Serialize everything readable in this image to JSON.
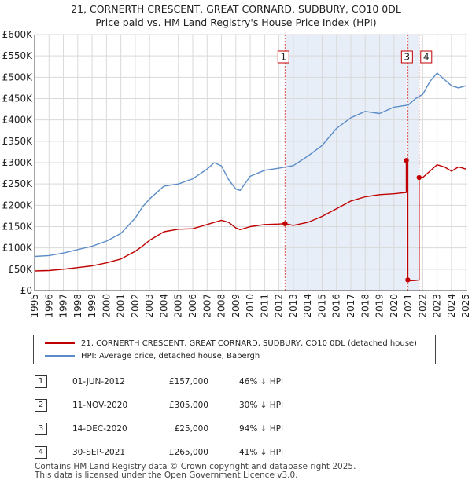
{
  "title_line1": "21, CORNERTH CRESCENT, GREAT CORNARD, SUDBURY, CO10 0DL",
  "title_line2": "Price paid vs. HM Land Registry's House Price Index (HPI)",
  "colors": {
    "property": "#c00000",
    "hpi": "#5b8cc8",
    "shade": "#e8eef8",
    "grid": "#d9d9d9"
  },
  "chart_data": {
    "type": "line",
    "title": "21, CORNERTH CRESCENT, GREAT CORNARD, SUDBURY, CO10 0DL — Price paid vs. HM Land Registry's House Price Index (HPI)",
    "xlabel": "",
    "ylabel": "",
    "xlim": [
      1995.0,
      2025.1
    ],
    "ylim": [
      0,
      600000
    ],
    "grid": true,
    "x_ticks": [
      "1995",
      "1996",
      "1997",
      "1998",
      "1999",
      "2000",
      "2001",
      "2002",
      "2003",
      "2004",
      "2005",
      "2006",
      "2007",
      "2008",
      "2009",
      "2010",
      "2011",
      "2012",
      "2013",
      "2014",
      "2015",
      "2016",
      "2017",
      "2018",
      "2019",
      "2020",
      "2021",
      "2022",
      "2023",
      "2024",
      "2025"
    ],
    "y_ticks": [
      "£0",
      "£50K",
      "£100K",
      "£150K",
      "£200K",
      "£250K",
      "£300K",
      "£350K",
      "£400K",
      "£450K",
      "£500K",
      "£550K",
      "£600K"
    ],
    "series": [
      {
        "name": "21, CORNERTH CRESCENT, GREAT CORNARD, SUDBURY, CO10 0DL (detached house)",
        "color": "#c00000",
        "x": [
          1995.0,
          1996.0,
          1997.0,
          1998.0,
          1999.0,
          2000.0,
          2001.0,
          2002.0,
          2002.5,
          2003.0,
          2004.0,
          2005.0,
          2006.0,
          2007.0,
          2007.5,
          2008.0,
          2008.5,
          2009.0,
          2009.3,
          2010.0,
          2011.0,
          2012.0,
          2012.42,
          2013.0,
          2014.0,
          2015.0,
          2016.0,
          2017.0,
          2018.0,
          2019.0,
          2020.0,
          2020.86,
          2020.86,
          2020.96,
          2020.96,
          2021.0,
          2021.5,
          2021.75,
          2021.75,
          2022.0,
          2022.5,
          2023.0,
          2023.5,
          2024.0,
          2024.5,
          2025.0
        ],
        "values": [
          46000,
          47000,
          50000,
          54000,
          58000,
          65000,
          74000,
          92000,
          104000,
          118000,
          138000,
          144000,
          145000,
          155000,
          160000,
          165000,
          160000,
          147000,
          143000,
          150000,
          155000,
          156000,
          157000,
          153000,
          160000,
          174000,
          192000,
          210000,
          220000,
          225000,
          227000,
          230000,
          305000,
          305000,
          25000,
          23000,
          24000,
          25000,
          265000,
          265000,
          280000,
          295000,
          290000,
          280000,
          290000,
          285000
        ]
      },
      {
        "name": "HPI: Average price, detached house, Babergh",
        "color": "#5b8cc8",
        "x": [
          1995.0,
          1996.0,
          1997.0,
          1998.0,
          1999.0,
          2000.0,
          2001.0,
          2002.0,
          2002.5,
          2003.0,
          2004.0,
          2005.0,
          2006.0,
          2007.0,
          2007.5,
          2008.0,
          2008.5,
          2009.0,
          2009.3,
          2010.0,
          2011.0,
          2012.0,
          2013.0,
          2014.0,
          2015.0,
          2016.0,
          2017.0,
          2018.0,
          2019.0,
          2020.0,
          2021.0,
          2021.5,
          2022.0,
          2022.5,
          2023.0,
          2023.5,
          2024.0,
          2024.5,
          2025.0
        ],
        "values": [
          80000,
          82000,
          88000,
          96000,
          104000,
          116000,
          134000,
          170000,
          196000,
          215000,
          245000,
          250000,
          262000,
          285000,
          300000,
          292000,
          260000,
          238000,
          235000,
          268000,
          282000,
          287000,
          293000,
          315000,
          340000,
          380000,
          405000,
          420000,
          415000,
          430000,
          435000,
          450000,
          460000,
          490000,
          510000,
          495000,
          480000,
          475000,
          480000
        ]
      }
    ],
    "annotations": [
      {
        "label": "1",
        "x": 2012.42
      },
      {
        "label": "3",
        "x": 2020.96
      },
      {
        "label": "4",
        "x": 2021.75
      }
    ],
    "shaded_regions": [
      {
        "from": 2012.42,
        "to": 2020.86
      },
      {
        "from": 2020.96,
        "to": 2021.75
      }
    ]
  },
  "legend": {
    "property_label": "21, CORNERTH CRESCENT, GREAT CORNARD, SUDBURY, CO10 0DL (detached house)",
    "hpi_label": "HPI: Average price, detached house, Babergh"
  },
  "sales": [
    {
      "num": "1",
      "date": "01-JUN-2012",
      "price": "£157,000",
      "hpi": "46% ↓ HPI"
    },
    {
      "num": "2",
      "date": "11-NOV-2020",
      "price": "£305,000",
      "hpi": "30% ↓ HPI"
    },
    {
      "num": "3",
      "date": "14-DEC-2020",
      "price": "£25,000",
      "hpi": "94% ↓ HPI"
    },
    {
      "num": "4",
      "date": "30-SEP-2021",
      "price": "£265,000",
      "hpi": "41% ↓ HPI"
    }
  ],
  "footer_line1": "Contains HM Land Registry data © Crown copyright and database right 2025.",
  "footer_line2": "This data is licensed under the Open Government Licence v3.0."
}
